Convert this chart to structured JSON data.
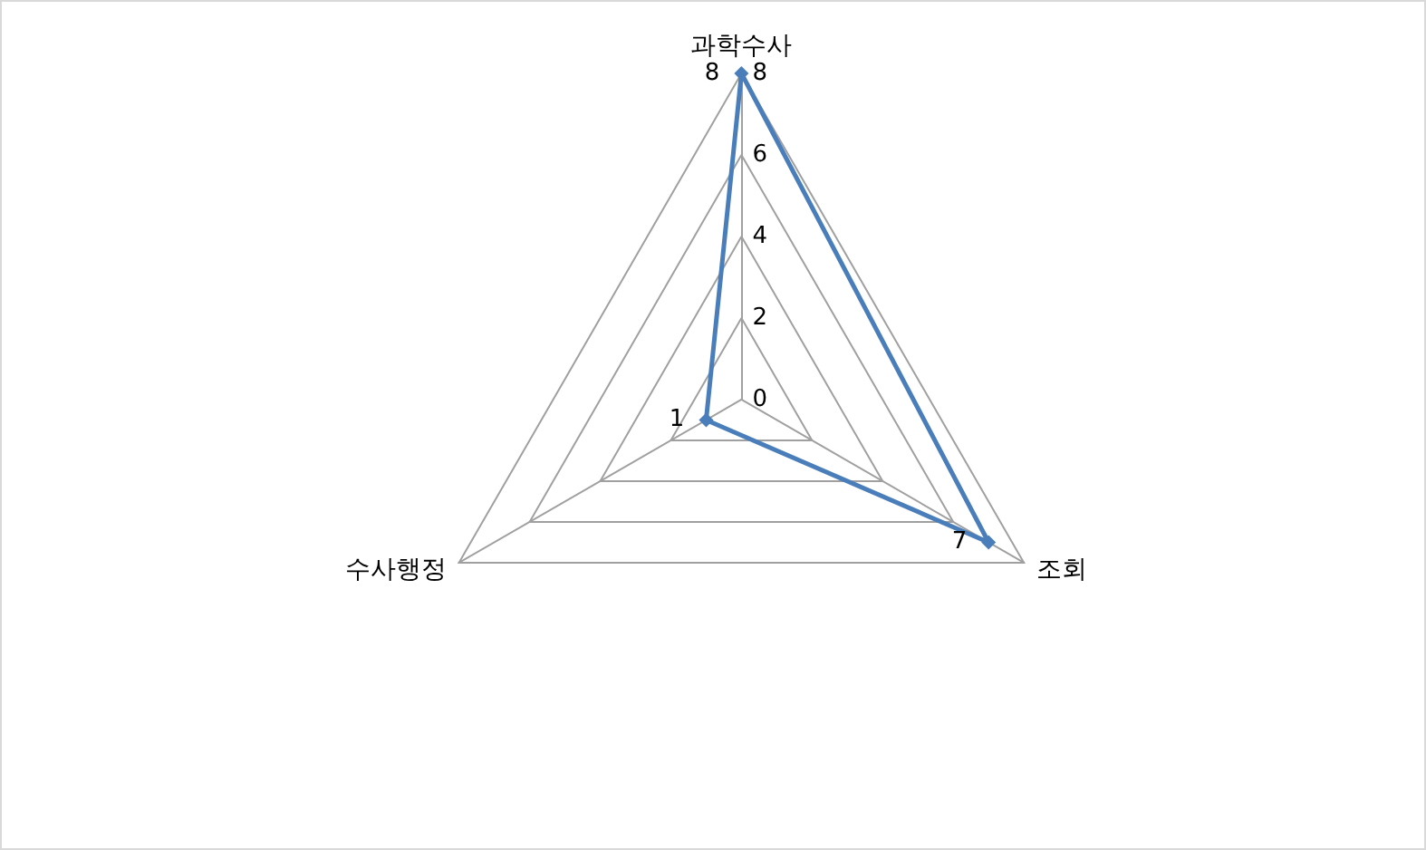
{
  "chart_data": {
    "type": "radar",
    "categories": [
      "과학수사",
      "조회",
      "수사행정"
    ],
    "series": [
      {
        "color": "#4a7ebb",
        "values": [
          8,
          7,
          1
        ]
      }
    ],
    "ylim": [
      0,
      8
    ],
    "yticks": [
      0,
      2,
      4,
      6,
      8
    ],
    "grid": true,
    "marker": "diamond",
    "line_style": "solid",
    "data_labels": true
  }
}
